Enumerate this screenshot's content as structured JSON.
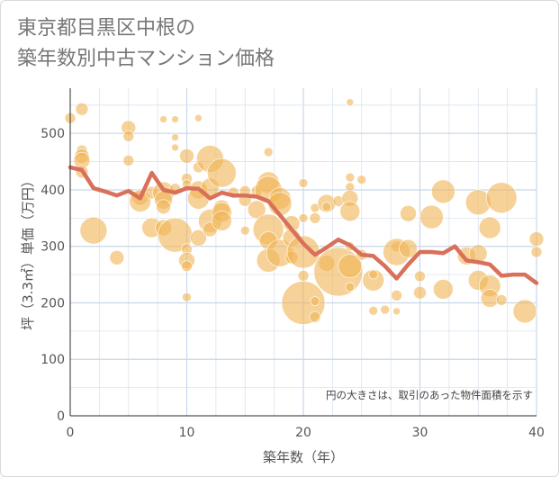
{
  "title_line1": "東京都目黒区中根の",
  "title_line2": "築年数別中古マンション価格",
  "colors": {
    "bubble": "#f0b454",
    "line": "#d9705a",
    "grid": "#dbe3ee",
    "grid_major": "#c8d6ea"
  },
  "chart_data": {
    "type": "scatter",
    "xlabel": "築年数（年）",
    "ylabel": "坪（3.3㎡）単価（万円）",
    "xlim": [
      0,
      40
    ],
    "ylim": [
      0,
      580
    ],
    "xticks": [
      0,
      10,
      20,
      30,
      40
    ],
    "yticks": [
      0,
      100,
      200,
      300,
      400,
      500
    ],
    "annotation": "円の大きさは、取引のあった物件面積を示す",
    "series": [
      {
        "kind": "bubble",
        "points": [
          [
            0,
            527,
            6
          ],
          [
            1,
            543,
            7
          ],
          [
            1,
            470,
            6
          ],
          [
            1,
            460,
            8
          ],
          [
            1,
            452,
            9
          ],
          [
            1,
            432,
            7
          ],
          [
            2,
            328,
            15
          ],
          [
            4,
            280,
            8
          ],
          [
            5,
            510,
            8
          ],
          [
            5,
            495,
            6
          ],
          [
            5,
            452,
            6
          ],
          [
            6,
            387,
            9
          ],
          [
            6,
            380,
            12
          ],
          [
            7,
            333,
            11
          ],
          [
            7,
            395,
            7
          ],
          [
            8,
            525,
            4
          ],
          [
            8,
            395,
            12
          ],
          [
            8,
            382,
            10
          ],
          [
            8,
            370,
            8
          ],
          [
            8,
            333,
            9
          ],
          [
            9,
            525,
            4
          ],
          [
            9,
            493,
            4
          ],
          [
            9,
            475,
            4
          ],
          [
            9,
            402,
            6
          ],
          [
            9,
            320,
            19
          ],
          [
            10,
            460,
            8
          ],
          [
            10,
            420,
            6
          ],
          [
            10,
            410,
            5
          ],
          [
            10,
            295,
            6
          ],
          [
            10,
            275,
            9
          ],
          [
            10,
            265,
            6
          ],
          [
            10,
            210,
            5
          ],
          [
            11,
            527,
            4
          ],
          [
            11,
            440,
            6
          ],
          [
            11,
            400,
            10
          ],
          [
            11,
            385,
            12
          ],
          [
            11,
            315,
            9
          ],
          [
            12,
            455,
            15
          ],
          [
            12,
            405,
            10
          ],
          [
            12,
            345,
            13
          ],
          [
            12,
            330,
            8
          ],
          [
            13,
            430,
            16
          ],
          [
            13,
            368,
            9
          ],
          [
            13,
            360,
            11
          ],
          [
            13,
            345,
            11
          ],
          [
            14,
            395,
            6
          ],
          [
            15,
            398,
            6
          ],
          [
            15,
            382,
            7
          ],
          [
            15,
            328,
            5
          ],
          [
            16,
            398,
            6
          ],
          [
            16,
            365,
            10
          ],
          [
            17,
            467,
            5
          ],
          [
            17,
            413,
            12
          ],
          [
            17,
            400,
            15
          ],
          [
            17,
            330,
            17
          ],
          [
            17,
            310,
            10
          ],
          [
            17,
            275,
            13
          ],
          [
            18,
            385,
            12
          ],
          [
            18,
            375,
            13
          ],
          [
            18,
            288,
            15
          ],
          [
            19,
            340,
            9
          ],
          [
            19,
            315,
            10
          ],
          [
            19,
            280,
            7
          ],
          [
            20,
            412,
            5
          ],
          [
            20,
            350,
            5
          ],
          [
            20,
            290,
            18
          ],
          [
            20,
            248,
            6
          ],
          [
            20,
            200,
            24
          ],
          [
            21,
            368,
            5
          ],
          [
            21,
            350,
            6
          ],
          [
            21,
            203,
            5
          ],
          [
            21,
            175,
            6
          ],
          [
            22,
            376,
            10
          ],
          [
            22,
            370,
            5
          ],
          [
            22,
            270,
            9
          ],
          [
            23,
            380,
            6
          ],
          [
            23,
            255,
            27
          ],
          [
            24,
            555,
            4
          ],
          [
            24,
            422,
            5
          ],
          [
            24,
            405,
            5
          ],
          [
            24,
            385,
            9
          ],
          [
            24,
            362,
            11
          ],
          [
            24,
            300,
            5
          ],
          [
            24,
            265,
            13
          ],
          [
            24,
            228,
            5
          ],
          [
            25,
            418,
            5
          ],
          [
            25,
            285,
            6
          ],
          [
            26,
            240,
            12
          ],
          [
            26,
            250,
            5
          ],
          [
            26,
            186,
            5
          ],
          [
            27,
            188,
            5
          ],
          [
            28,
            300,
            6
          ],
          [
            28,
            290,
            15
          ],
          [
            28,
            185,
            4
          ],
          [
            28,
            213,
            6
          ],
          [
            29,
            358,
            9
          ],
          [
            29,
            296,
            10
          ],
          [
            30,
            247,
            6
          ],
          [
            30,
            218,
            7
          ],
          [
            31,
            352,
            13
          ],
          [
            32,
            397,
            13
          ],
          [
            32,
            224,
            11
          ],
          [
            34,
            283,
            10
          ],
          [
            35,
            378,
            14
          ],
          [
            35,
            287,
            10
          ],
          [
            35,
            240,
            11
          ],
          [
            36,
            333,
            12
          ],
          [
            36,
            230,
            12
          ],
          [
            36,
            208,
            10
          ],
          [
            37,
            386,
            17
          ],
          [
            37,
            205,
            6
          ],
          [
            39,
            185,
            13
          ],
          [
            40,
            313,
            8
          ],
          [
            40,
            290,
            6
          ]
        ]
      },
      {
        "kind": "line",
        "x": [
          0,
          1,
          2,
          3,
          4,
          5,
          6,
          7,
          8,
          9,
          10,
          11,
          12,
          13,
          14,
          15,
          16,
          17,
          18,
          19,
          20,
          21,
          22,
          23,
          24,
          25,
          26,
          27,
          28,
          29,
          30,
          31,
          32,
          33,
          34,
          35,
          36,
          37,
          38,
          39,
          40
        ],
        "values": [
          440,
          435,
          403,
          397,
          390,
          398,
          385,
          430,
          400,
          395,
          403,
          402,
          385,
          395,
          390,
          390,
          388,
          380,
          355,
          330,
          305,
          285,
          298,
          312,
          302,
          285,
          283,
          265,
          243,
          268,
          290,
          290,
          288,
          300,
          275,
          272,
          268,
          248,
          250,
          250,
          235
        ]
      }
    ]
  }
}
